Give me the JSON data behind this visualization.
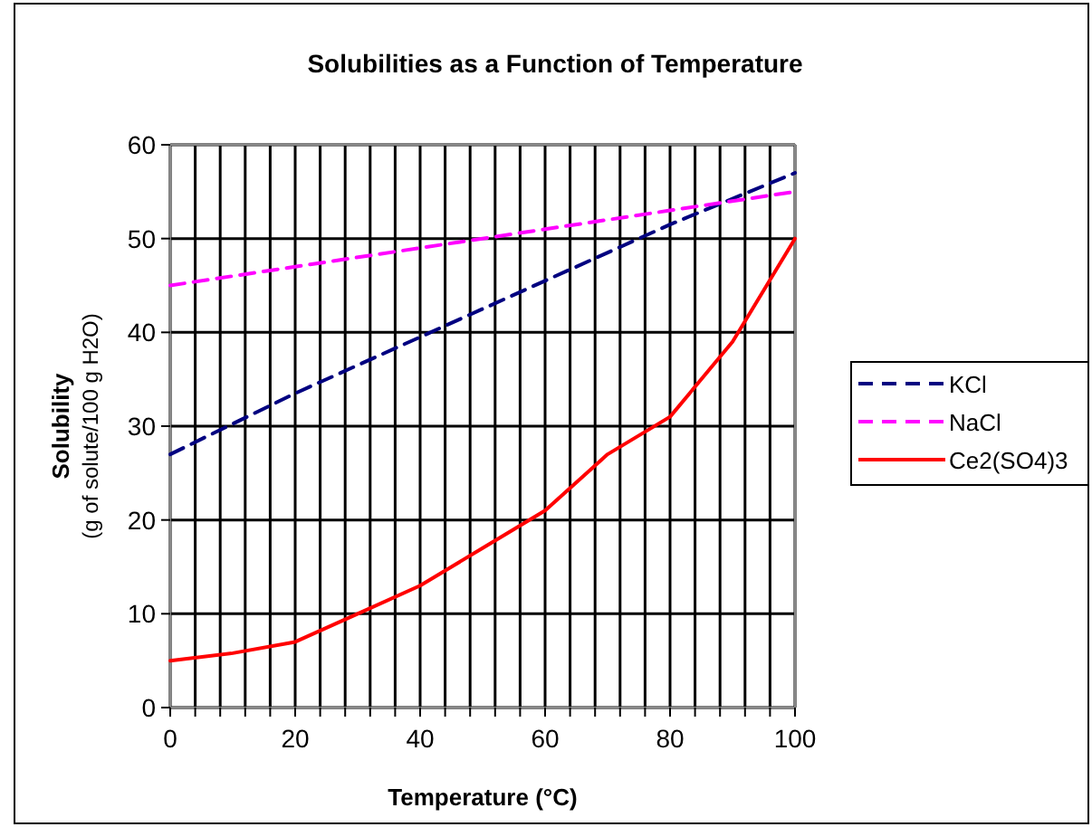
{
  "chart_data": {
    "type": "line",
    "title": "Solubilities as a Function of Temperature",
    "xlabel": "Temperature (°C)",
    "ylabel": "Solubility\n(g of solute/100 g H2O)",
    "xlim": [
      0,
      100
    ],
    "xticks": [
      0,
      {
        "value": 4,
        "label": null
      },
      {
        "value": 8,
        "label": null
      },
      {
        "value": 12,
        "label": null
      },
      {
        "value": 16,
        "label": null
      },
      20,
      {
        "value": 24,
        "label": null
      },
      {
        "value": 28,
        "label": null
      },
      {
        "value": 32,
        "label": null
      },
      {
        "value": 36,
        "label": null
      },
      40,
      {
        "value": 44,
        "label": null
      },
      {
        "value": 48,
        "label": null
      },
      {
        "value": 52,
        "label": null
      },
      {
        "value": 56,
        "label": null
      },
      60,
      {
        "value": 64,
        "label": null
      },
      {
        "value": 68,
        "label": null
      },
      {
        "value": 72,
        "label": null
      },
      {
        "value": 76,
        "label": null
      },
      80,
      {
        "value": 84,
        "label": null
      },
      {
        "value": 88,
        "label": null
      },
      {
        "value": 92,
        "label": null
      },
      {
        "value": 96,
        "label": null
      },
      100
    ],
    "ylim": [
      0,
      60
    ],
    "yticks": [
      0,
      10,
      20,
      30,
      40,
      50,
      60
    ],
    "grid": true,
    "legend": "right",
    "marker": "none",
    "series": [
      {
        "name": "KCl",
        "color": "#000080",
        "line_style": "dashed",
        "x": [
          0,
          20,
          40,
          60,
          80,
          100
        ],
        "values": [
          27,
          33.5,
          39.5,
          45.5,
          51.5,
          57
        ]
      },
      {
        "name": "NaCl",
        "color": "#ff00ff",
        "line_style": "dashed",
        "x": [
          0,
          20,
          40,
          60,
          80,
          100
        ],
        "values": [
          45,
          47,
          49,
          51,
          53,
          55
        ]
      },
      {
        "name": "Ce2(SO4)3",
        "color": "#ff0000",
        "line_style": "solid",
        "x": [
          0,
          10,
          20,
          30,
          40,
          50,
          60,
          70,
          80,
          90,
          100
        ],
        "values": [
          5,
          5.8,
          7,
          10,
          13,
          17,
          21,
          27,
          31,
          39,
          50
        ]
      }
    ]
  }
}
